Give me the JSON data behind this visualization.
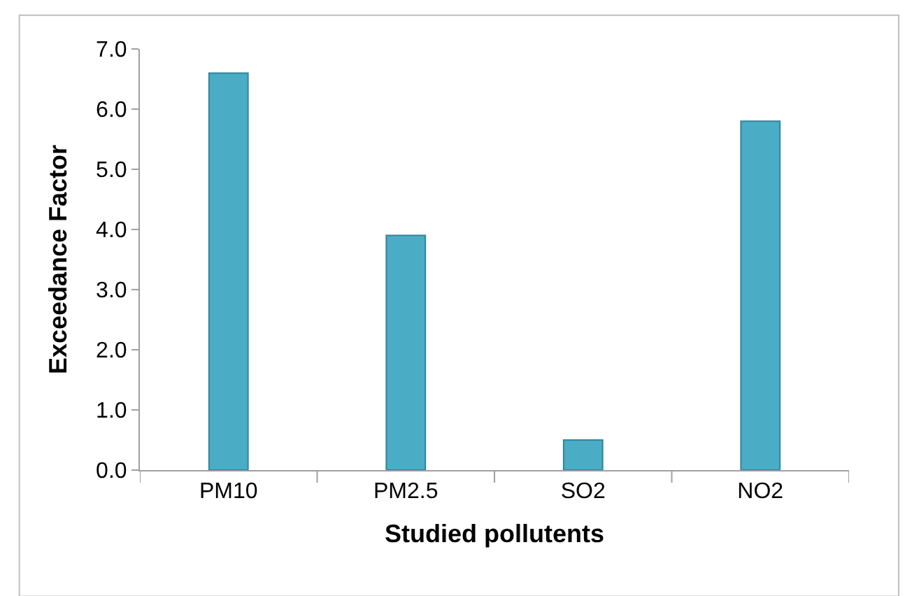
{
  "chart_data": {
    "type": "bar",
    "xlabel": "Studied pollutents",
    "ylabel": "Exceedance Factor",
    "categories": [
      "PM10",
      "PM2.5",
      "SO2",
      "NO2"
    ],
    "values": [
      6.6,
      3.9,
      0.5,
      5.8
    ],
    "color": "#4bacc6",
    "ylim": [
      0,
      7
    ],
    "yticks": [
      {
        "value": 0,
        "label": "0.0"
      },
      {
        "value": 1,
        "label": "1.0"
      },
      {
        "value": 2,
        "label": "2.0"
      },
      {
        "value": 3,
        "label": "3.0"
      },
      {
        "value": 4,
        "label": "4.0"
      },
      {
        "value": 5,
        "label": "5.0"
      },
      {
        "value": 6,
        "label": "6.0"
      },
      {
        "value": 7,
        "label": "7.0"
      }
    ],
    "legend": false
  }
}
